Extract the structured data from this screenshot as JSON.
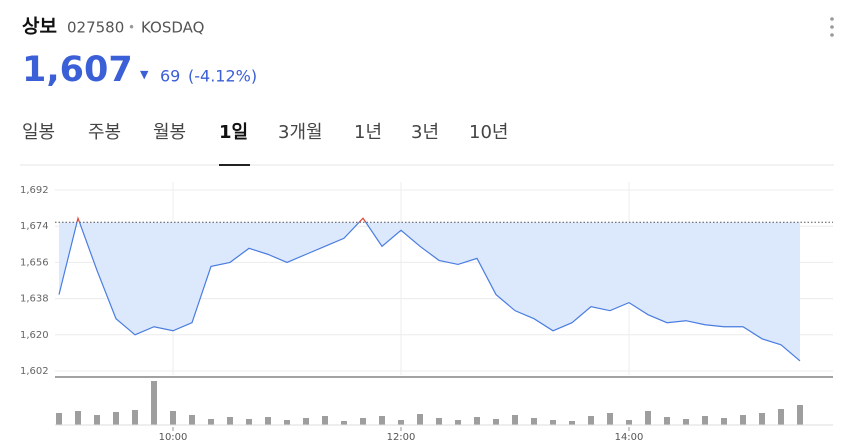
{
  "header": {
    "name": "상보",
    "code": "027580",
    "separator": "•",
    "market": "KOSDAQ",
    "price": "1,607",
    "arrow": "▼",
    "change": "69",
    "change_pct": "(-4.12%)"
  },
  "tabs": {
    "items": [
      "일봉",
      "주봉",
      "월봉",
      "1일",
      "3개월",
      "1년",
      "3년",
      "10년"
    ],
    "selected": 3
  },
  "chart_data": {
    "type": "line",
    "categories": [
      null,
      null,
      null,
      null,
      null,
      null,
      "10:00",
      null,
      null,
      null,
      null,
      null,
      null,
      null,
      null,
      null,
      null,
      null,
      "12:00",
      null,
      null,
      null,
      null,
      null,
      null,
      null,
      null,
      null,
      null,
      null,
      "14:00",
      null,
      null,
      null,
      null,
      null,
      null,
      null,
      null,
      null
    ],
    "series": [
      {
        "name": "price",
        "color": "#4a7de0",
        "up_color": "#e0483c",
        "fill": "#dce8fb",
        "values": [
          1640,
          1678,
          1652,
          1628,
          1620,
          1624,
          1622,
          1626,
          1654,
          1656,
          1663,
          1660,
          1656,
          1660,
          1664,
          1668,
          1678,
          1664,
          1672,
          1664,
          1657,
          1655,
          1658,
          1640,
          1632,
          1628,
          1622,
          1626,
          1634,
          1632,
          1636,
          1630,
          1626,
          1627,
          1625,
          1624,
          1624,
          1618,
          1615,
          1607
        ]
      },
      {
        "name": "volume",
        "color": "#9e9e9e",
        "values": [
          12,
          14,
          10,
          13,
          15,
          44,
          14,
          10,
          6,
          8,
          6,
          8,
          5,
          7,
          9,
          4,
          7,
          9,
          5,
          11,
          7,
          5,
          8,
          6,
          10,
          7,
          5,
          4,
          9,
          12,
          5,
          14,
          8,
          6,
          9,
          7,
          10,
          12,
          16,
          20
        ]
      }
    ],
    "reference": 1676,
    "ylim": [
      1600,
      1696
    ],
    "yticks": [
      {
        "value": 1692,
        "label": "1,692"
      },
      {
        "value": 1674,
        "label": "1,674"
      },
      {
        "value": 1656,
        "label": "1,656"
      },
      {
        "value": 1638,
        "label": "1,638"
      },
      {
        "value": 1620,
        "label": "1,620"
      },
      {
        "value": 1602,
        "label": "1,602"
      }
    ],
    "grid": true
  }
}
